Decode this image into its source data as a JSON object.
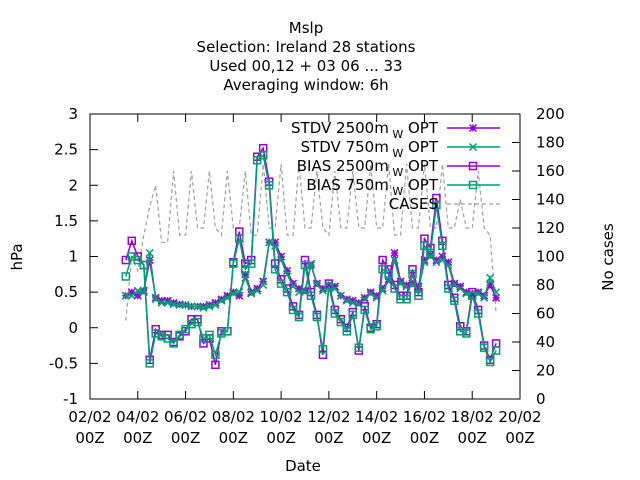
{
  "chart_data": {
    "type": "line",
    "title_lines": [
      "Mslp",
      "Selection: Ireland      28 stations",
      "Used  00,12  + 03 06 ... 33",
      "Averaging window:  6h"
    ],
    "xlabel": "Date",
    "ylabel": "hPa",
    "y2label": "No cases",
    "xlim": [
      "2002-02-02T00Z",
      "2002-02-20T00Z"
    ],
    "ylim": [
      -1,
      3
    ],
    "y2lim": [
      0,
      200
    ],
    "x_ticks": [
      "2002-02-02T00Z",
      "2002-02-04T00Z",
      "2002-02-06T00Z",
      "2002-02-08T00Z",
      "2002-02-10T00Z",
      "2002-02-12T00Z",
      "2002-02-14T00Z",
      "2002-02-16T00Z",
      "2002-02-18T00Z",
      "2002-02-20T00Z"
    ],
    "x_tick_labels": [
      [
        "02/02",
        "00Z"
      ],
      [
        "04/02",
        "00Z"
      ],
      [
        "06/02",
        "00Z"
      ],
      [
        "08/02",
        "00Z"
      ],
      [
        "10/02",
        "00Z"
      ],
      [
        "12/02",
        "00Z"
      ],
      [
        "14/02",
        "00Z"
      ],
      [
        "16/02",
        "00Z"
      ],
      [
        "18/02",
        "00Z"
      ],
      [
        "20/02",
        "00Z"
      ]
    ],
    "y_ticks": [
      "-1",
      "-0.5",
      "0",
      "0.5",
      "1",
      "1.5",
      "2",
      "2.5",
      "3"
    ],
    "y2_ticks": [
      "0",
      "20",
      "40",
      "60",
      "80",
      "100",
      "120",
      "140",
      "160",
      "180",
      "200"
    ],
    "legend_position": "top-right",
    "grid": false,
    "series": [
      {
        "name": "STDV 2500m",
        "sub": "W",
        "suffix": " OPT",
        "axis": "y",
        "color": "#9400d3",
        "marker": "star",
        "x": [
          "2002-02-03T12Z",
          "2002-02-03T18Z",
          "2002-02-04T00Z",
          "2002-02-04T06Z",
          "2002-02-04T12Z",
          "2002-02-04T18Z",
          "2002-02-05T00Z",
          "2002-02-05T06Z",
          "2002-02-05T12Z",
          "2002-02-05T18Z",
          "2002-02-06T00Z",
          "2002-02-06T06Z",
          "2002-02-06T12Z",
          "2002-02-06T18Z",
          "2002-02-07T00Z",
          "2002-02-07T06Z",
          "2002-02-07T12Z",
          "2002-02-07T18Z",
          "2002-02-08T00Z",
          "2002-02-08T06Z",
          "2002-02-08T12Z",
          "2002-02-08T18Z",
          "2002-02-09T00Z",
          "2002-02-09T06Z",
          "2002-02-09T12Z",
          "2002-02-09T18Z",
          "2002-02-10T00Z",
          "2002-02-10T06Z",
          "2002-02-10T12Z",
          "2002-02-10T18Z",
          "2002-02-11T00Z",
          "2002-02-11T06Z",
          "2002-02-11T12Z",
          "2002-02-11T18Z",
          "2002-02-12T00Z",
          "2002-02-12T06Z",
          "2002-02-12T12Z",
          "2002-02-12T18Z",
          "2002-02-13T00Z",
          "2002-02-13T06Z",
          "2002-02-13T12Z",
          "2002-02-13T18Z",
          "2002-02-14T00Z",
          "2002-02-14T06Z",
          "2002-02-14T12Z",
          "2002-02-14T18Z",
          "2002-02-15T00Z",
          "2002-02-15T06Z",
          "2002-02-15T12Z",
          "2002-02-15T18Z",
          "2002-02-16T00Z",
          "2002-02-16T06Z",
          "2002-02-16T12Z",
          "2002-02-16T18Z",
          "2002-02-17T00Z",
          "2002-02-17T06Z",
          "2002-02-17T12Z",
          "2002-02-17T18Z",
          "2002-02-18T00Z",
          "2002-02-18T06Z",
          "2002-02-18T12Z",
          "2002-02-18T18Z",
          "2002-02-19T00Z"
        ],
        "values": [
          0.45,
          0.5,
          0.45,
          0.52,
          0.95,
          0.42,
          0.38,
          0.38,
          0.35,
          0.33,
          0.32,
          0.3,
          0.3,
          0.3,
          0.32,
          0.35,
          0.4,
          0.45,
          0.5,
          0.45,
          0.75,
          0.5,
          0.55,
          0.65,
          1.2,
          1.2,
          1.0,
          0.8,
          0.62,
          0.55,
          0.52,
          0.88,
          0.62,
          0.55,
          0.6,
          0.58,
          0.45,
          0.4,
          0.38,
          0.35,
          0.42,
          0.5,
          0.45,
          0.55,
          0.68,
          1.05,
          0.65,
          0.6,
          0.62,
          0.58,
          0.95,
          1.02,
          0.95,
          1.0,
          0.92,
          0.62,
          0.58,
          0.5,
          0.48,
          0.5,
          0.45,
          0.6,
          0.42
        ]
      },
      {
        "name": "STDV 750m",
        "sub": "W",
        "suffix": " OPT",
        "axis": "y",
        "color": "#009e73",
        "marker": "cross",
        "x": [
          "2002-02-03T12Z",
          "2002-02-03T18Z",
          "2002-02-04T00Z",
          "2002-02-04T06Z",
          "2002-02-04T12Z",
          "2002-02-04T18Z",
          "2002-02-05T00Z",
          "2002-02-05T06Z",
          "2002-02-05T12Z",
          "2002-02-05T18Z",
          "2002-02-06T00Z",
          "2002-02-06T06Z",
          "2002-02-06T12Z",
          "2002-02-06T18Z",
          "2002-02-07T00Z",
          "2002-02-07T06Z",
          "2002-02-07T12Z",
          "2002-02-07T18Z",
          "2002-02-08T00Z",
          "2002-02-08T06Z",
          "2002-02-08T12Z",
          "2002-02-08T18Z",
          "2002-02-09T00Z",
          "2002-02-09T06Z",
          "2002-02-09T12Z",
          "2002-02-09T18Z",
          "2002-02-10T00Z",
          "2002-02-10T06Z",
          "2002-02-10T12Z",
          "2002-02-10T18Z",
          "2002-02-11T00Z",
          "2002-02-11T06Z",
          "2002-02-11T12Z",
          "2002-02-11T18Z",
          "2002-02-12T00Z",
          "2002-02-12T06Z",
          "2002-02-12T12Z",
          "2002-02-12T18Z",
          "2002-02-13T00Z",
          "2002-02-13T06Z",
          "2002-02-13T12Z",
          "2002-02-13T18Z",
          "2002-02-14T00Z",
          "2002-02-14T06Z",
          "2002-02-14T12Z",
          "2002-02-14T18Z",
          "2002-02-15T00Z",
          "2002-02-15T06Z",
          "2002-02-15T12Z",
          "2002-02-15T18Z",
          "2002-02-16T00Z",
          "2002-02-16T06Z",
          "2002-02-16T12Z",
          "2002-02-16T18Z",
          "2002-02-17T00Z",
          "2002-02-17T06Z",
          "2002-02-17T12Z",
          "2002-02-17T18Z",
          "2002-02-18T00Z",
          "2002-02-18T06Z",
          "2002-02-18T12Z",
          "2002-02-18T18Z",
          "2002-02-19T00Z"
        ],
        "values": [
          0.45,
          0.45,
          0.52,
          0.5,
          1.05,
          0.4,
          0.35,
          0.35,
          0.33,
          0.32,
          0.32,
          0.3,
          0.3,
          0.28,
          0.3,
          0.32,
          0.38,
          0.42,
          0.48,
          0.5,
          0.7,
          0.48,
          0.52,
          0.6,
          1.2,
          1.15,
          0.95,
          0.75,
          0.58,
          0.5,
          0.5,
          0.9,
          0.6,
          0.52,
          0.58,
          0.55,
          0.45,
          0.38,
          0.35,
          0.33,
          0.4,
          0.48,
          0.42,
          0.52,
          0.65,
          0.95,
          0.62,
          0.58,
          0.6,
          0.55,
          0.92,
          1.0,
          0.92,
          0.95,
          0.88,
          0.6,
          0.55,
          0.48,
          0.45,
          0.48,
          0.42,
          0.7,
          0.5
        ]
      },
      {
        "name": "BIAS 2500m",
        "sub": "W",
        "suffix": " OPT",
        "axis": "y",
        "color": "#9400d3",
        "marker": "square",
        "x": [
          "2002-02-03T12Z",
          "2002-02-03T18Z",
          "2002-02-04T00Z",
          "2002-02-04T06Z",
          "2002-02-04T12Z",
          "2002-02-04T18Z",
          "2002-02-05T00Z",
          "2002-02-05T06Z",
          "2002-02-05T12Z",
          "2002-02-05T18Z",
          "2002-02-06T00Z",
          "2002-02-06T06Z",
          "2002-02-06T12Z",
          "2002-02-06T18Z",
          "2002-02-07T00Z",
          "2002-02-07T06Z",
          "2002-02-07T12Z",
          "2002-02-07T18Z",
          "2002-02-08T00Z",
          "2002-02-08T06Z",
          "2002-02-08T12Z",
          "2002-02-08T18Z",
          "2002-02-09T00Z",
          "2002-02-09T06Z",
          "2002-02-09T12Z",
          "2002-02-09T18Z",
          "2002-02-10T00Z",
          "2002-02-10T06Z",
          "2002-02-10T12Z",
          "2002-02-10T18Z",
          "2002-02-11T00Z",
          "2002-02-11T06Z",
          "2002-02-11T12Z",
          "2002-02-11T18Z",
          "2002-02-12T00Z",
          "2002-02-12T06Z",
          "2002-02-12T12Z",
          "2002-02-12T18Z",
          "2002-02-13T00Z",
          "2002-02-13T06Z",
          "2002-02-13T12Z",
          "2002-02-13T18Z",
          "2002-02-14T00Z",
          "2002-02-14T06Z",
          "2002-02-14T12Z",
          "2002-02-14T18Z",
          "2002-02-15T00Z",
          "2002-02-15T06Z",
          "2002-02-15T12Z",
          "2002-02-15T18Z",
          "2002-02-16T00Z",
          "2002-02-16T06Z",
          "2002-02-16T12Z",
          "2002-02-16T18Z",
          "2002-02-17T00Z",
          "2002-02-17T06Z",
          "2002-02-17T12Z",
          "2002-02-17T18Z",
          "2002-02-18T00Z",
          "2002-02-18T06Z",
          "2002-02-18T12Z",
          "2002-02-18T18Z",
          "2002-02-19T00Z"
        ],
        "values": [
          0.95,
          1.22,
          1.0,
          0.88,
          -0.45,
          -0.02,
          -0.1,
          -0.1,
          -0.2,
          -0.12,
          -0.05,
          0.12,
          0.12,
          -0.22,
          -0.15,
          -0.52,
          -0.05,
          -0.05,
          0.92,
          1.35,
          0.9,
          0.95,
          2.4,
          2.52,
          2.05,
          0.9,
          0.68,
          0.55,
          0.3,
          0.18,
          0.95,
          0.5,
          0.18,
          -0.38,
          0.62,
          0.25,
          0.12,
          0.0,
          0.22,
          -0.32,
          0.3,
          0.0,
          0.05,
          0.95,
          0.82,
          0.6,
          0.45,
          0.45,
          0.82,
          0.5,
          1.25,
          1.12,
          1.82,
          1.22,
          0.6,
          0.42,
          0.02,
          -0.05,
          0.5,
          0.25,
          -0.25,
          -0.45,
          -0.22
        ]
      },
      {
        "name": "BIAS 750m",
        "sub": "W",
        "suffix": " OPT",
        "axis": "y",
        "color": "#009e73",
        "marker": "square",
        "x": [
          "2002-02-03T12Z",
          "2002-02-03T18Z",
          "2002-02-04T00Z",
          "2002-02-04T06Z",
          "2002-02-04T12Z",
          "2002-02-04T18Z",
          "2002-02-05T00Z",
          "2002-02-05T06Z",
          "2002-02-05T12Z",
          "2002-02-05T18Z",
          "2002-02-06T00Z",
          "2002-02-06T06Z",
          "2002-02-06T12Z",
          "2002-02-06T18Z",
          "2002-02-07T00Z",
          "2002-02-07T06Z",
          "2002-02-07T12Z",
          "2002-02-07T18Z",
          "2002-02-08T00Z",
          "2002-02-08T06Z",
          "2002-02-08T12Z",
          "2002-02-08T18Z",
          "2002-02-09T00Z",
          "2002-02-09T06Z",
          "2002-02-09T12Z",
          "2002-02-09T18Z",
          "2002-02-10T00Z",
          "2002-02-10T06Z",
          "2002-02-10T12Z",
          "2002-02-10T18Z",
          "2002-02-11T00Z",
          "2002-02-11T06Z",
          "2002-02-11T12Z",
          "2002-02-11T18Z",
          "2002-02-12T00Z",
          "2002-02-12T06Z",
          "2002-02-12T12Z",
          "2002-02-12T18Z",
          "2002-02-13T00Z",
          "2002-02-13T06Z",
          "2002-02-13T12Z",
          "2002-02-13T18Z",
          "2002-02-14T00Z",
          "2002-02-14T06Z",
          "2002-02-14T12Z",
          "2002-02-14T18Z",
          "2002-02-15T00Z",
          "2002-02-15T06Z",
          "2002-02-15T12Z",
          "2002-02-15T18Z",
          "2002-02-16T00Z",
          "2002-02-16T06Z",
          "2002-02-16T12Z",
          "2002-02-16T18Z",
          "2002-02-17T00Z",
          "2002-02-17T06Z",
          "2002-02-17T12Z",
          "2002-02-17T18Z",
          "2002-02-18T00Z",
          "2002-02-18T06Z",
          "2002-02-18T12Z",
          "2002-02-18T18Z",
          "2002-02-19T00Z"
        ],
        "values": [
          0.72,
          1.0,
          0.95,
          0.88,
          -0.5,
          -0.08,
          -0.12,
          -0.15,
          -0.22,
          -0.1,
          -0.02,
          0.05,
          0.08,
          -0.15,
          -0.1,
          -0.38,
          -0.08,
          -0.05,
          0.9,
          1.25,
          0.82,
          0.9,
          2.35,
          2.42,
          2.0,
          0.82,
          0.62,
          0.5,
          0.25,
          0.15,
          0.88,
          0.45,
          0.15,
          -0.3,
          0.58,
          0.2,
          0.08,
          -0.05,
          0.18,
          -0.28,
          0.25,
          -0.02,
          0.02,
          0.82,
          0.75,
          0.55,
          0.4,
          0.4,
          0.75,
          0.45,
          1.15,
          1.05,
          1.72,
          1.15,
          0.55,
          0.38,
          -0.05,
          -0.08,
          0.45,
          0.2,
          -0.28,
          -0.48,
          -0.32
        ]
      },
      {
        "name": "CASES",
        "axis": "y2",
        "color": "#a0a0a0",
        "marker": "none",
        "dash": true,
        "x": [
          "2002-02-03T12Z",
          "2002-02-03T18Z",
          "2002-02-04T00Z",
          "2002-02-04T06Z",
          "2002-02-04T12Z",
          "2002-02-04T18Z",
          "2002-02-05T00Z",
          "2002-02-05T06Z",
          "2002-02-05T12Z",
          "2002-02-05T18Z",
          "2002-02-06T00Z",
          "2002-02-06T06Z",
          "2002-02-06T12Z",
          "2002-02-06T18Z",
          "2002-02-07T00Z",
          "2002-02-07T06Z",
          "2002-02-07T12Z",
          "2002-02-07T18Z",
          "2002-02-08T00Z",
          "2002-02-08T06Z",
          "2002-02-08T12Z",
          "2002-02-08T18Z",
          "2002-02-09T00Z",
          "2002-02-09T06Z",
          "2002-02-09T12Z",
          "2002-02-09T18Z",
          "2002-02-10T00Z",
          "2002-02-10T06Z",
          "2002-02-10T12Z",
          "2002-02-10T18Z",
          "2002-02-11T00Z",
          "2002-02-11T06Z",
          "2002-02-11T12Z",
          "2002-02-11T18Z",
          "2002-02-12T00Z",
          "2002-02-12T06Z",
          "2002-02-12T12Z",
          "2002-02-12T18Z",
          "2002-02-13T00Z",
          "2002-02-13T06Z",
          "2002-02-13T12Z",
          "2002-02-13T18Z",
          "2002-02-14T00Z",
          "2002-02-14T06Z",
          "2002-02-14T12Z",
          "2002-02-14T18Z",
          "2002-02-15T00Z",
          "2002-02-15T06Z",
          "2002-02-15T12Z",
          "2002-02-15T18Z",
          "2002-02-16T00Z",
          "2002-02-16T06Z",
          "2002-02-16T12Z",
          "2002-02-16T18Z",
          "2002-02-17T00Z",
          "2002-02-17T06Z",
          "2002-02-17T12Z",
          "2002-02-17T18Z",
          "2002-02-18T00Z",
          "2002-02-18T06Z",
          "2002-02-18T12Z",
          "2002-02-18T18Z",
          "2002-02-19T00Z"
        ],
        "values": [
          55,
          100,
          90,
          115,
          135,
          150,
          110,
          110,
          160,
          115,
          115,
          160,
          120,
          120,
          160,
          120,
          115,
          160,
          120,
          120,
          160,
          115,
          115,
          165,
          120,
          120,
          165,
          115,
          115,
          165,
          120,
          120,
          160,
          120,
          115,
          160,
          120,
          120,
          160,
          120,
          120,
          165,
          120,
          120,
          165,
          115,
          115,
          165,
          120,
          120,
          165,
          120,
          120,
          165,
          120,
          120,
          140,
          120,
          120,
          160,
          120,
          115,
          60
        ]
      }
    ]
  }
}
